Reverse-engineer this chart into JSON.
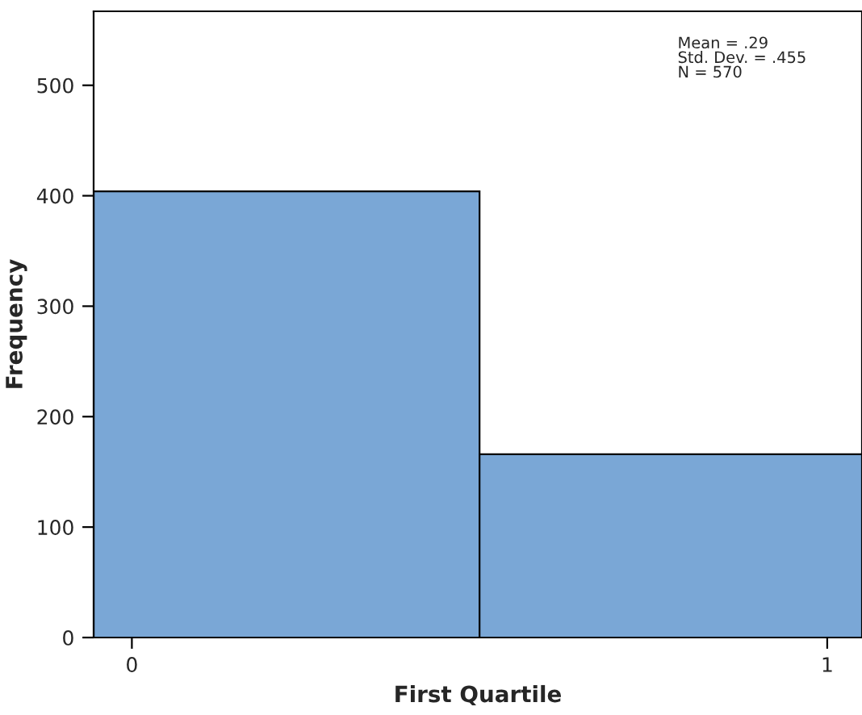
{
  "chart_data": {
    "type": "histogram",
    "xlabel": "First Quartile",
    "ylabel": "Frequency",
    "bins": [
      -0.055,
      0.5,
      1.055
    ],
    "values": [
      404,
      166
    ],
    "color": "#7aa7d6",
    "xlim": [
      -0.055,
      1.05
    ],
    "ylim": [
      0,
      567
    ],
    "xticks": [
      0,
      1
    ],
    "yticks": [
      0,
      100,
      200,
      300,
      400,
      500
    ],
    "grid": false,
    "legend": false,
    "annotations": [
      "Mean = .29\nStd. Dev. = .455\nN = 570"
    ]
  }
}
